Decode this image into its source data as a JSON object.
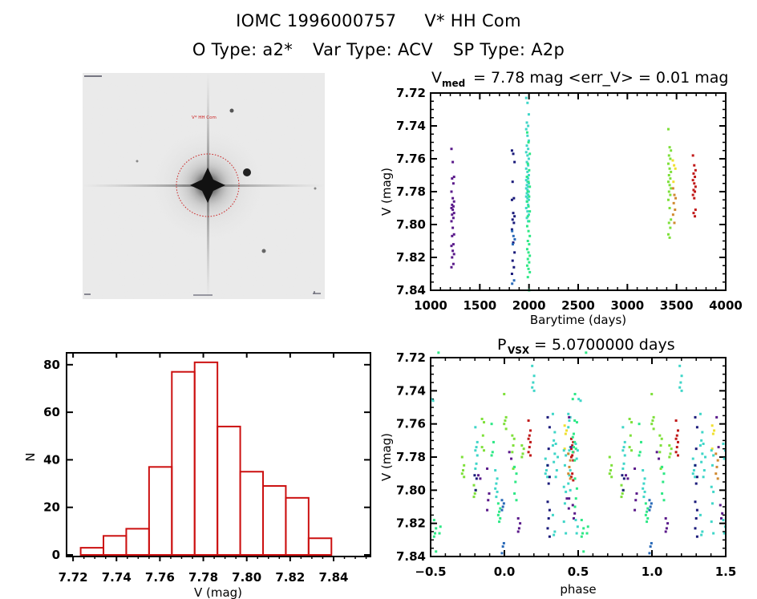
{
  "header": {
    "line1": [
      "IOMC 1996000757",
      "V* HH Com"
    ],
    "line2": [
      "O Type: a2*",
      "Var Type: ACV",
      "SP Type: A2p"
    ]
  },
  "sky_image": {
    "label_target": "V* HH Com",
    "marker": "dotted-red-circle",
    "marker_color": "#cc2222",
    "corner_labels_legible": false
  },
  "chart_data": [
    {
      "id": "light-curve",
      "type": "scatter",
      "title_main": "V",
      "title_sub": "med",
      "title_rest": " = 7.78 mag <err_V> = 0.01 mag",
      "xlabel": "Barytime (days)",
      "ylabel": "V (mag)",
      "xlim": [
        1000,
        4000
      ],
      "ylim": [
        7.84,
        7.72
      ],
      "y_inverted": true,
      "xticks": [
        1000,
        1500,
        2000,
        2500,
        3000,
        3500,
        4000
      ],
      "yticks": [
        7.72,
        7.74,
        7.76,
        7.78,
        7.8,
        7.82,
        7.84
      ],
      "ytick_labels": [
        "7.72",
        "7.74",
        "7.76",
        "7.78",
        "7.80",
        "7.82",
        "7.84"
      ],
      "color_by": "time",
      "groups": [
        {
          "x": 1225,
          "color": "#5a1a8a",
          "y": [
            7.754,
            7.762,
            7.771,
            7.772,
            7.775,
            7.78,
            7.784,
            7.786,
            7.788,
            7.789,
            7.79,
            7.791,
            7.793,
            7.794,
            7.796,
            7.798,
            7.802,
            7.806,
            7.807,
            7.812,
            7.813,
            7.816,
            7.818,
            7.82,
            7.824,
            7.826
          ]
        },
        {
          "x": 1840,
          "color": "#1a1a7a",
          "y": [
            7.755,
            7.757,
            7.762,
            7.774,
            7.784,
            7.785,
            7.793,
            7.795,
            7.797,
            7.799,
            7.803,
            7.811,
            7.817,
            7.822,
            7.826,
            7.83
          ]
        },
        {
          "x": 1842,
          "color": "#2a6ab8",
          "y": [
            7.804,
            7.807,
            7.809,
            7.812,
            7.834,
            7.836
          ]
        },
        {
          "x": 1985,
          "color": "#3fd6c8",
          "y": [
            7.723,
            7.726,
            7.733,
            7.738,
            7.74,
            7.742,
            7.746,
            7.749,
            7.752,
            7.754,
            7.756,
            7.758,
            7.76,
            7.762,
            7.764,
            7.766,
            7.768,
            7.77,
            7.771,
            7.772,
            7.773,
            7.774,
            7.775,
            7.776,
            7.777,
            7.778,
            7.779,
            7.78,
            7.781,
            7.782,
            7.783,
            7.784,
            7.785,
            7.786,
            7.788,
            7.79,
            7.792,
            7.794,
            7.796,
            7.798
          ]
        },
        {
          "x": 1995,
          "color": "#2ee886",
          "y": [
            7.744,
            7.75,
            7.757,
            7.763,
            7.767,
            7.771,
            7.774,
            7.777,
            7.78,
            7.783,
            7.786,
            7.789,
            7.792,
            7.795,
            7.798,
            7.801,
            7.804,
            7.807,
            7.81,
            7.812,
            7.815,
            7.817,
            7.819,
            7.821,
            7.823,
            7.825,
            7.827,
            7.829,
            7.832,
            7.84
          ]
        },
        {
          "x": 3430,
          "color": "#7ee03a",
          "y": [
            7.742,
            7.753,
            7.755,
            7.758,
            7.76,
            7.763,
            7.766,
            7.768,
            7.77,
            7.772,
            7.774,
            7.776,
            7.778,
            7.78,
            7.782,
            7.785,
            7.79,
            7.797,
            7.799,
            7.802,
            7.806,
            7.808
          ]
        },
        {
          "x": 3475,
          "color": "#f0e030",
          "y": [
            7.761,
            7.764,
            7.766,
            7.774
          ]
        },
        {
          "x": 3478,
          "color": "#d08a30",
          "y": [
            7.778,
            7.782,
            7.784,
            7.787,
            7.791,
            7.794,
            7.799
          ]
        },
        {
          "x": 3680,
          "color": "#c01818",
          "y": [
            7.758,
            7.764,
            7.767,
            7.769,
            7.771,
            7.773,
            7.775,
            7.777,
            7.779,
            7.78,
            7.782,
            7.784,
            7.791,
            7.793,
            7.795
          ]
        }
      ]
    },
    {
      "id": "histogram",
      "type": "bar",
      "title": "",
      "xlabel": "V (mag)",
      "ylabel": "N",
      "xlim": [
        7.717,
        7.857
      ],
      "ylim": [
        0,
        85
      ],
      "xticks": [
        7.72,
        7.74,
        7.76,
        7.78,
        7.8,
        7.82,
        7.84
      ],
      "xtick_labels": [
        "7.72",
        "7.74",
        "7.76",
        "7.78",
        "7.80",
        "7.82",
        "7.84"
      ],
      "yticks": [
        0,
        20,
        40,
        60,
        80
      ],
      "bin_edges": [
        7.7235,
        7.734,
        7.7445,
        7.755,
        7.7655,
        7.776,
        7.7865,
        7.797,
        7.8075,
        7.818,
        7.8285,
        7.839
      ],
      "values": [
        3,
        8,
        11,
        37,
        77,
        81,
        54,
        35,
        29,
        24,
        7
      ],
      "bar_color": "#cc1111"
    },
    {
      "id": "phase-curve",
      "type": "scatter",
      "title_main": "P",
      "title_sub": "VSX",
      "title_rest": " = 5.0700000 days",
      "xlabel": "phase",
      "ylabel": "V (mag)",
      "xlim": [
        -0.5,
        1.5
      ],
      "ylim": [
        7.84,
        7.72
      ],
      "y_inverted": true,
      "xticks": [
        -0.5,
        0.0,
        0.5,
        1.0,
        1.5
      ],
      "xtick_labels": [
        "−0.5",
        "0.0",
        "0.5",
        "1.0",
        "1.5"
      ],
      "yticks": [
        7.72,
        7.74,
        7.76,
        7.78,
        7.8,
        7.82,
        7.84
      ],
      "ytick_labels": [
        "7.72",
        "7.74",
        "7.76",
        "7.78",
        "7.80",
        "7.82",
        "7.84"
      ],
      "period_days": 5.07,
      "repeat_offset": 1.0,
      "groups": [
        {
          "phase": 0.44,
          "color": "#3fd6c8",
          "y": [
            7.754,
            7.756,
            7.758,
            7.762,
            7.774,
            7.776,
            7.778,
            7.788,
            7.791,
            7.796,
            7.8
          ]
        },
        {
          "phase": 0.46,
          "color": "#c01818",
          "y": [
            7.769,
            7.771,
            7.773,
            7.775,
            7.777,
            7.779,
            7.78,
            7.782,
            7.79,
            7.792,
            7.794
          ]
        },
        {
          "phase": 0.47,
          "color": "#2ee886",
          "y": [
            7.745,
            7.758,
            7.766,
            7.768,
            7.771,
            7.774,
            7.777,
            7.782
          ]
        },
        {
          "phase": 0.485,
          "color": "#2ee886",
          "y": [
            7.742,
            7.759,
            7.775,
            7.793,
            7.799,
            7.805,
            7.81
          ]
        },
        {
          "phase": 0.51,
          "color": "#3fd6c8",
          "y": [
            7.745,
            7.746
          ]
        },
        {
          "phase": 0.53,
          "color": "#2ee886",
          "y": [
            7.818,
            7.823,
            7.826,
            7.828,
            7.837
          ]
        },
        {
          "phase": 0.56,
          "color": "#2ee886",
          "y": [
            7.717,
            7.822,
            7.826
          ]
        },
        {
          "phase": 0.445,
          "color": "#5a1a8a",
          "y": [
            7.805
          ]
        },
        {
          "phase": 0.43,
          "color": "#5a1a8a",
          "y": [
            7.805,
            7.811
          ]
        },
        {
          "phase": 0.72,
          "color": "#7ee03a",
          "y": [
            7.78,
            7.785,
            7.788,
            7.79,
            7.792
          ]
        },
        {
          "phase": 0.8,
          "color": "#7ee03a",
          "y": [
            7.797,
            7.8,
            7.802,
            7.804
          ]
        },
        {
          "phase": 0.81,
          "color": "#3fd6c8",
          "y": [
            7.762,
            7.771,
            7.774,
            7.776,
            7.779,
            7.784,
            7.787
          ]
        },
        {
          "phase": 0.805,
          "color": "#1a1a7a",
          "y": [
            7.791,
            7.793,
            7.8
          ]
        },
        {
          "phase": 0.83,
          "color": "#5a1a8a",
          "y": [
            7.791,
            7.793
          ]
        },
        {
          "phase": 0.855,
          "color": "#7ee03a",
          "y": [
            7.757,
            7.759,
            7.767,
            7.774,
            7.776
          ]
        },
        {
          "phase": 0.89,
          "color": "#5a1a8a",
          "y": [
            7.787,
            7.802,
            7.806,
            7.812
          ]
        },
        {
          "phase": 0.92,
          "color": "#2ee886",
          "y": [
            7.76,
            7.771,
            7.777,
            7.779
          ]
        },
        {
          "phase": 0.945,
          "color": "#3fd6c8",
          "y": [
            7.788,
            7.793,
            7.796,
            7.799,
            7.801,
            7.804
          ]
        },
        {
          "phase": 0.965,
          "color": "#2ee886",
          "y": [
            7.808,
            7.811,
            7.813,
            7.815,
            7.817,
            7.819
          ]
        },
        {
          "phase": 0.99,
          "color": "#2a6ab8",
          "y": [
            7.806,
            7.808,
            7.81,
            7.812,
            7.832,
            7.834,
            7.838
          ]
        },
        {
          "phase": 1.005,
          "color": "#7ee03a",
          "y": [
            7.742,
            7.756,
            7.758,
            7.76,
            7.763
          ]
        },
        {
          "phase": 1.04,
          "color": "#5a1a8a",
          "y": [
            7.777,
            7.781
          ]
        },
        {
          "phase": 1.06,
          "color": "#7ee03a",
          "y": [
            7.767,
            7.769,
            7.773,
            7.777,
            7.786,
            7.787
          ]
        },
        {
          "phase": 1.075,
          "color": "#2ee886",
          "y": [
            7.786,
            7.79,
            7.795,
            7.802,
            7.806
          ]
        },
        {
          "phase": 1.1,
          "color": "#5a1a8a",
          "y": [
            7.817,
            7.82,
            7.823,
            7.825
          ]
        },
        {
          "phase": 1.125,
          "color": "#7ee03a",
          "y": [
            7.773,
            7.775,
            7.778,
            7.78
          ]
        },
        {
          "phase": 1.17,
          "color": "#c01818",
          "y": [
            7.758,
            7.764,
            7.767,
            7.769,
            7.771,
            7.774,
            7.777,
            7.779
          ]
        },
        {
          "phase": 1.195,
          "color": "#3fd6c8",
          "y": [
            7.725,
            7.731,
            7.735,
            7.738,
            7.74
          ]
        },
        {
          "phase": 1.285,
          "color": "#3fd6c8",
          "y": [
            7.781,
            7.785,
            7.788,
            7.79,
            7.792
          ]
        },
        {
          "phase": 1.3,
          "color": "#1a1a7a",
          "y": [
            7.756,
            7.762,
            7.775,
            7.785,
            7.792,
            7.796,
            7.807,
            7.812,
            7.817,
            7.823,
            7.828
          ]
        },
        {
          "phase": 1.335,
          "color": "#3fd6c8",
          "y": [
            7.754,
            7.765,
            7.77,
            7.773,
            7.778,
            7.783,
            7.815,
            7.825,
            7.827
          ]
        },
        {
          "phase": 1.355,
          "color": "#3fd6c8",
          "y": [
            7.772,
            7.78,
            7.788,
            7.792
          ]
        },
        {
          "phase": 1.415,
          "color": "#f0e030",
          "y": [
            7.761,
            7.764,
            7.766,
            7.775
          ]
        },
        {
          "phase": 1.41,
          "color": "#3fd6c8",
          "y": [
            7.776,
            7.779,
            7.785,
            7.798,
            7.801,
            7.808,
            7.819,
            7.826
          ]
        },
        {
          "phase": 1.44,
          "color": "#d08a30",
          "y": [
            7.778,
            7.782,
            7.786,
            7.79,
            7.793
          ]
        },
        {
          "phase": 1.445,
          "color": "#5a1a8a",
          "y": [
            7.756,
            7.774
          ]
        },
        {
          "phase": 1.47,
          "color": "#5a1a8a",
          "y": [
            7.809,
            7.814,
            7.817
          ]
        },
        {
          "phase": 1.49,
          "color": "#3fd6c8",
          "y": [
            7.772,
            7.776,
            7.781,
            7.818,
            7.822,
            7.826
          ]
        }
      ]
    }
  ]
}
